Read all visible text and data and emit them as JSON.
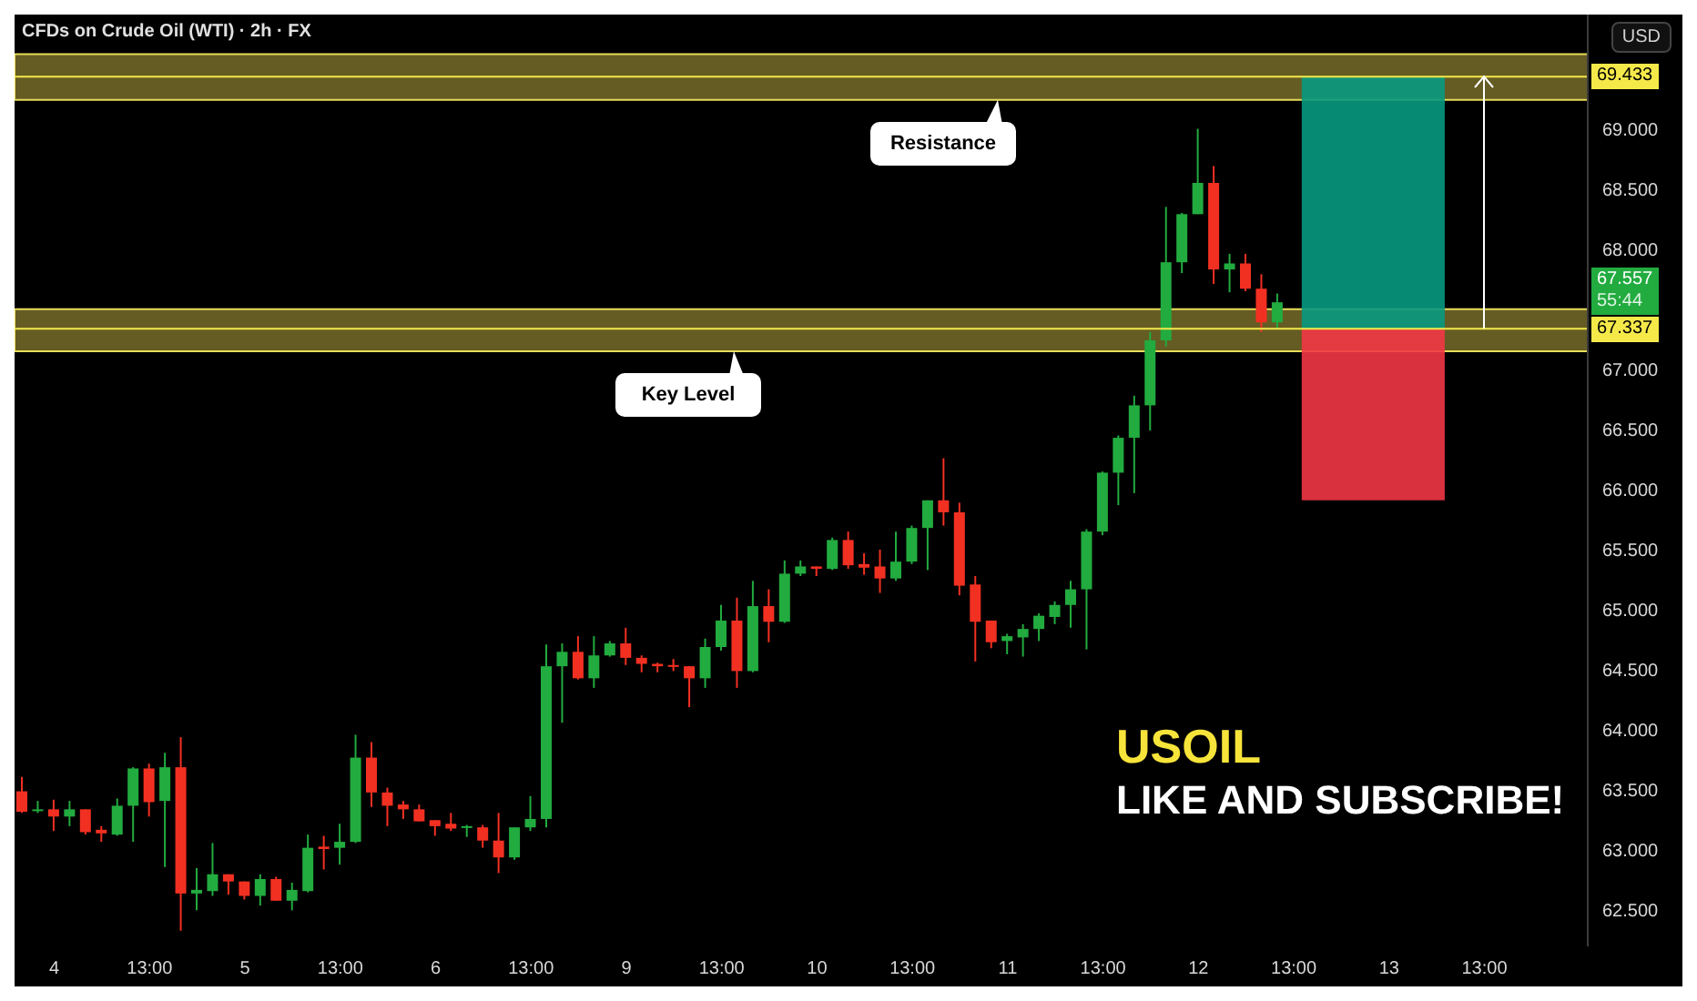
{
  "chart_data": {
    "type": "candlestick",
    "title": "CFDs on Crude Oil (WTI) · 2h · FX",
    "ylabel": "USD",
    "categories": [
      null,
      null,
      "4",
      null,
      null,
      null,
      null,
      null,
      "13:00",
      null,
      null,
      null,
      null,
      null,
      "5",
      null,
      null,
      null,
      null,
      null,
      "13:00",
      null,
      null,
      null,
      null,
      null,
      "6",
      null,
      null,
      null,
      null,
      null,
      "13:00",
      null,
      null,
      null,
      null,
      null,
      "9",
      null,
      null,
      null,
      null,
      null,
      "13:00",
      null,
      null,
      null,
      null,
      null,
      "10",
      null,
      null,
      null,
      null,
      null,
      "13:00",
      null,
      null,
      null,
      null,
      null,
      "11",
      null,
      null,
      null,
      null,
      null,
      "13:00",
      null,
      null,
      null,
      null,
      null,
      "12",
      null,
      null,
      null,
      null,
      null,
      "13:00",
      null,
      null,
      null,
      null,
      null,
      "13",
      null,
      null,
      null,
      null,
      null,
      "13:00",
      null,
      null,
      null,
      null,
      null,
      null
    ],
    "ohlc": [
      [
        63.49,
        63.61,
        63.31,
        63.32
      ],
      [
        63.33,
        63.41,
        63.31,
        63.34
      ],
      [
        63.34,
        63.42,
        63.16,
        63.28
      ],
      [
        63.28,
        63.41,
        63.2,
        63.34
      ],
      [
        63.34,
        63.34,
        63.13,
        63.15
      ],
      [
        63.17,
        63.2,
        63.07,
        63.14
      ],
      [
        63.13,
        63.43,
        63.12,
        63.37
      ],
      [
        63.37,
        63.69,
        63.07,
        63.68
      ],
      [
        63.68,
        63.72,
        63.28,
        63.4
      ],
      [
        63.41,
        63.81,
        62.86,
        63.69
      ],
      [
        63.69,
        63.94,
        62.33,
        62.64
      ],
      [
        62.64,
        62.85,
        62.5,
        62.67
      ],
      [
        62.66,
        63.06,
        62.62,
        62.8
      ],
      [
        62.8,
        62.8,
        62.63,
        62.74
      ],
      [
        62.74,
        62.74,
        62.59,
        62.62
      ],
      [
        62.62,
        62.8,
        62.54,
        62.76
      ],
      [
        62.76,
        62.78,
        62.58,
        62.58
      ],
      [
        62.58,
        62.73,
        62.5,
        62.67
      ],
      [
        62.66,
        63.13,
        62.65,
        63.02
      ],
      [
        63.03,
        63.12,
        62.84,
        63.01
      ],
      [
        63.02,
        63.22,
        62.88,
        63.07
      ],
      [
        63.07,
        63.96,
        63.06,
        63.77
      ],
      [
        63.77,
        63.9,
        63.36,
        63.48
      ],
      [
        63.48,
        63.52,
        63.2,
        63.37
      ],
      [
        63.38,
        63.41,
        63.26,
        63.34
      ],
      [
        63.34,
        63.38,
        63.24,
        63.24
      ],
      [
        63.25,
        63.25,
        63.12,
        63.2
      ],
      [
        63.22,
        63.31,
        63.16,
        63.18
      ],
      [
        63.19,
        63.21,
        63.11,
        63.2
      ],
      [
        63.19,
        63.21,
        63.02,
        63.08
      ],
      [
        63.08,
        63.31,
        62.81,
        62.94
      ],
      [
        62.94,
        63.19,
        62.92,
        63.19
      ],
      [
        63.19,
        63.45,
        63.16,
        63.26
      ],
      [
        63.26,
        64.71,
        63.19,
        64.53
      ],
      [
        64.53,
        64.72,
        64.06,
        64.65
      ],
      [
        64.65,
        64.78,
        64.42,
        64.43
      ],
      [
        64.43,
        64.78,
        64.35,
        64.62
      ],
      [
        64.62,
        64.74,
        64.61,
        64.72
      ],
      [
        64.72,
        64.85,
        64.54,
        64.6
      ],
      [
        64.6,
        64.62,
        64.48,
        64.55
      ],
      [
        64.55,
        64.56,
        64.48,
        64.53
      ],
      [
        64.54,
        64.59,
        64.49,
        64.53
      ],
      [
        64.53,
        64.53,
        64.19,
        64.43
      ],
      [
        64.43,
        64.76,
        64.35,
        64.69
      ],
      [
        64.69,
        65.04,
        64.66,
        64.91
      ],
      [
        64.91,
        65.1,
        64.35,
        64.49
      ],
      [
        64.49,
        65.24,
        64.48,
        65.03
      ],
      [
        65.03,
        65.17,
        64.73,
        64.9
      ],
      [
        64.9,
        65.41,
        64.89,
        65.3
      ],
      [
        65.3,
        65.41,
        65.28,
        65.36
      ],
      [
        65.36,
        65.36,
        65.28,
        65.34
      ],
      [
        65.34,
        65.6,
        65.33,
        65.58
      ],
      [
        65.58,
        65.65,
        65.34,
        65.37
      ],
      [
        65.38,
        65.47,
        65.29,
        65.35
      ],
      [
        65.36,
        65.5,
        65.14,
        65.26
      ],
      [
        65.26,
        65.65,
        65.24,
        65.4
      ],
      [
        65.4,
        65.7,
        65.38,
        65.68
      ],
      [
        65.68,
        65.91,
        65.33,
        65.91
      ],
      [
        65.91,
        66.26,
        65.7,
        65.81
      ],
      [
        65.81,
        65.89,
        65.12,
        65.2
      ],
      [
        65.21,
        65.28,
        64.57,
        64.9
      ],
      [
        64.91,
        64.91,
        64.68,
        64.73
      ],
      [
        64.74,
        64.8,
        64.63,
        64.78
      ],
      [
        64.77,
        64.88,
        64.61,
        64.84
      ],
      [
        64.84,
        64.97,
        64.74,
        64.95
      ],
      [
        64.94,
        65.07,
        64.88,
        65.04
      ],
      [
        65.04,
        65.24,
        64.85,
        65.17
      ],
      [
        65.17,
        65.67,
        64.67,
        65.65
      ],
      [
        65.65,
        66.15,
        65.62,
        66.14
      ],
      [
        66.14,
        66.45,
        65.87,
        66.43
      ],
      [
        66.43,
        66.78,
        65.97,
        66.7
      ],
      [
        66.7,
        67.31,
        66.49,
        67.24
      ],
      [
        67.24,
        68.35,
        67.19,
        67.89
      ],
      [
        67.89,
        68.3,
        67.8,
        68.29
      ],
      [
        68.29,
        69.0,
        68.29,
        68.55
      ],
      [
        68.55,
        68.69,
        67.71,
        67.83
      ],
      [
        67.83,
        67.96,
        67.64,
        67.88
      ],
      [
        67.88,
        67.96,
        67.65,
        67.67
      ],
      [
        67.67,
        67.79,
        67.31,
        67.39
      ],
      [
        67.39,
        67.63,
        67.34,
        67.557
      ],
      null,
      null,
      null,
      null,
      null,
      null,
      null,
      null,
      null,
      null,
      null,
      null,
      null,
      null,
      null,
      null,
      null,
      null,
      null
    ],
    "colors": [
      "#f23022",
      "#22ab3f",
      "#f23022",
      "#22ab3f",
      "#f23022",
      "#f23022",
      "#22ab3f",
      "#22ab3f",
      "#f23022",
      "#22ab3f",
      "#f23022",
      "#22ab3f",
      "#22ab3f",
      "#f23022",
      "#f23022",
      "#22ab3f",
      "#f23022",
      "#22ab3f",
      "#22ab3f",
      "#f23022",
      "#22ab3f",
      "#22ab3f",
      "#f23022",
      "#f23022",
      "#f23022",
      "#f23022",
      "#f23022",
      "#f23022",
      "#22ab3f",
      "#f23022",
      "#f23022",
      "#22ab3f",
      "#22ab3f",
      "#22ab3f",
      "#22ab3f",
      "#f23022",
      "#22ab3f",
      "#22ab3f",
      "#f23022",
      "#f23022",
      "#f23022",
      "#f23022",
      "#f23022",
      "#22ab3f",
      "#22ab3f",
      "#f23022",
      "#22ab3f",
      "#f23022",
      "#22ab3f",
      "#22ab3f",
      "#f23022",
      "#22ab3f",
      "#f23022",
      "#f23022",
      "#f23022",
      "#22ab3f",
      "#22ab3f",
      "#22ab3f",
      "#f23022",
      "#f23022",
      "#f23022",
      "#f23022",
      "#22ab3f",
      "#22ab3f",
      "#22ab3f",
      "#22ab3f",
      "#22ab3f",
      "#22ab3f",
      "#22ab3f",
      "#22ab3f",
      "#22ab3f",
      "#22ab3f",
      "#22ab3f",
      "#22ab3f",
      "#22ab3f",
      "#f23022",
      "#22ab3f",
      "#f23022",
      "#f23022",
      "#22ab3f",
      null,
      null,
      null,
      null,
      null,
      null,
      null,
      null,
      null,
      null,
      null,
      null,
      null,
      null,
      null,
      null,
      null,
      null,
      null
    ],
    "ylim": [
      62.2,
      69.95
    ],
    "yticks": [
      {
        "value": 62.5,
        "label": "62.500"
      },
      {
        "value": 63,
        "label": "63.000"
      },
      {
        "value": 63.5,
        "label": "63.500"
      },
      {
        "value": 64,
        "label": "64.000"
      },
      {
        "value": 64.5,
        "label": "64.500"
      },
      {
        "value": 65,
        "label": "65.000"
      },
      {
        "value": 65.5,
        "label": "65.500"
      },
      {
        "value": 66,
        "label": "66.000"
      },
      {
        "value": 66.5,
        "label": "66.500"
      },
      {
        "value": 67,
        "label": "67.000"
      },
      {
        "value": 68,
        "label": "68.000"
      },
      {
        "value": 68.5,
        "label": "68.500"
      },
      {
        "value": 69,
        "label": "69.000"
      }
    ],
    "ref_lines": [
      {
        "axis": "y",
        "value": 69.433,
        "label": "69.433",
        "color": "#f5e94a"
      },
      {
        "axis": "y",
        "value": 67.337,
        "label": "67.337",
        "color": "#f5e94a"
      }
    ],
    "bands": [
      {
        "axis": "y",
        "from": 69.24,
        "to": 69.62,
        "label": "Resistance",
        "color": "#a89a3c"
      },
      {
        "axis": "y",
        "from": 67.15,
        "to": 67.5,
        "label": "Key Level",
        "color": "#a89a3c"
      },
      {
        "axis": "y",
        "from": 67.337,
        "to": 69.433,
        "color": "#089981"
      },
      {
        "axis": "y",
        "from": 65.91,
        "to": 67.337,
        "color": "#f23645"
      }
    ],
    "annotations": [
      "67.557",
      "55:44",
      "USOIL",
      "LIKE AND SUBSCRIBE!"
    ]
  }
}
